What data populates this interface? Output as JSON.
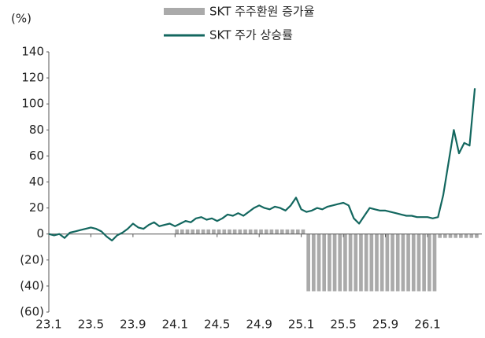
{
  "chart_data": {
    "type": "line",
    "y_label": "(%)",
    "categories": [
      "23.1",
      null,
      null,
      null,
      null,
      null,
      null,
      null,
      "23.5",
      null,
      null,
      null,
      null,
      null,
      null,
      null,
      "23.9",
      null,
      null,
      null,
      null,
      null,
      null,
      null,
      "24.1",
      null,
      null,
      null,
      null,
      null,
      null,
      null,
      "24.5",
      null,
      null,
      null,
      null,
      null,
      null,
      null,
      "24.9",
      null,
      null,
      null,
      null,
      null,
      null,
      null,
      "25.1",
      null,
      null,
      null,
      null,
      null,
      null,
      null,
      "25.5",
      null,
      null,
      null,
      null,
      null,
      null,
      null,
      "25.9",
      null,
      null,
      null,
      null,
      null,
      null,
      null,
      "26.1",
      null,
      null,
      null,
      null,
      null,
      null,
      null,
      null,
      null
    ],
    "series": [
      {
        "name": "SKT 주주환원 증가율",
        "type": "bar",
        "color": "#aaaaaa",
        "values": [
          null,
          null,
          null,
          null,
          null,
          null,
          null,
          null,
          null,
          null,
          null,
          null,
          null,
          null,
          null,
          null,
          null,
          null,
          null,
          null,
          null,
          null,
          null,
          null,
          3.5,
          3.5,
          3.5,
          3.5,
          3.5,
          3.5,
          3.5,
          3.5,
          3.5,
          3.5,
          3.5,
          3.5,
          3.5,
          3.5,
          3.5,
          3.5,
          3.5,
          3.5,
          3.5,
          3.5,
          3.5,
          3.5,
          3.5,
          3.5,
          3.5,
          -44,
          -44,
          -44,
          -44,
          -44,
          -44,
          -44,
          -44,
          -44,
          -44,
          -44,
          -44,
          -44,
          -44,
          -44,
          -44,
          -44,
          -44,
          -44,
          -44,
          -44,
          -44,
          -44,
          -44,
          -44,
          -3,
          -3,
          -3,
          -3,
          -3,
          -3,
          -3,
          -3
        ]
      },
      {
        "name": "SKT 주가 상승률",
        "type": "line",
        "color": "#13675f",
        "values": [
          0,
          -1,
          0,
          -3,
          1,
          2,
          3,
          4,
          5,
          4,
          2,
          -2,
          -5,
          -1,
          1,
          4,
          8,
          5,
          4,
          7,
          9,
          6,
          7,
          8,
          6,
          8,
          10,
          9,
          12,
          13,
          11,
          12,
          10,
          12,
          15,
          14,
          16,
          14,
          17,
          20,
          22,
          20,
          19,
          21,
          20,
          18,
          22,
          28,
          19,
          17,
          18,
          20,
          19,
          21,
          22,
          23,
          24,
          22,
          12,
          8,
          14,
          20,
          19,
          18,
          18,
          17,
          16,
          15,
          14,
          14,
          13,
          13,
          13,
          12,
          13,
          30,
          55,
          80,
          62,
          70,
          68,
          112
        ]
      }
    ],
    "ylim": [
      -60,
      140
    ],
    "yticks": [
      {
        "value": -60,
        "label": "(60)"
      },
      {
        "value": -40,
        "label": "(40)"
      },
      {
        "value": -20,
        "label": "(20)"
      },
      0,
      20,
      40,
      60,
      80,
      100,
      120,
      140
    ]
  }
}
